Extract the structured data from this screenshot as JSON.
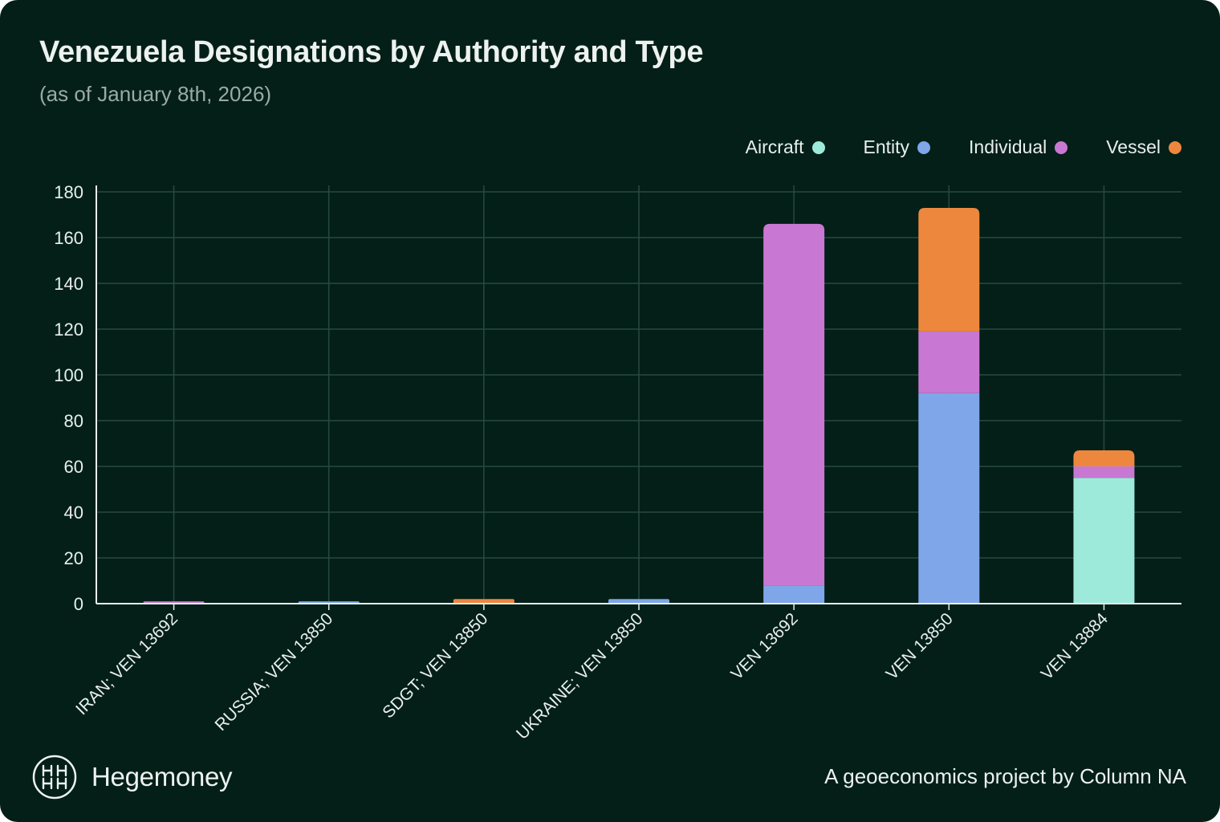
{
  "title": "Venezuela Designations by Authority and Type",
  "subtitle": "(as of January 8th, 2026)",
  "legend": [
    {
      "label": "Aircraft",
      "color": "#9eeada"
    },
    {
      "label": "Entity",
      "color": "#7fa6e8"
    },
    {
      "label": "Individual",
      "color": "#c878d2"
    },
    {
      "label": "Vessel",
      "color": "#ee873e"
    }
  ],
  "chart_data": {
    "type": "bar",
    "stacked": true,
    "title": "Venezuela Designations by Authority and Type",
    "categories": [
      "IRAN; VEN 13692",
      "RUSSIA; VEN 13850",
      "SDGT; VEN 13850",
      "UKRAINE; VEN 13850",
      "VEN 13692",
      "VEN 13850",
      "VEN 13884"
    ],
    "series": [
      {
        "name": "Aircraft",
        "color": "#9eeada",
        "values": [
          0,
          0,
          0,
          0,
          0,
          0,
          55
        ]
      },
      {
        "name": "Entity",
        "color": "#7fa6e8",
        "values": [
          0,
          1,
          0,
          2,
          8,
          92,
          0
        ]
      },
      {
        "name": "Individual",
        "color": "#c878d2",
        "values": [
          1,
          0,
          0,
          0,
          158,
          27,
          5
        ]
      },
      {
        "name": "Vessel",
        "color": "#ee873e",
        "values": [
          0,
          0,
          2,
          0,
          0,
          54,
          7
        ]
      }
    ],
    "ylim": [
      0,
      180
    ],
    "yticks": [
      0,
      20,
      40,
      60,
      80,
      100,
      120,
      140,
      160,
      180
    ],
    "xlabel": "",
    "ylabel": "",
    "grid": true,
    "legend_position": "top-right"
  },
  "footer": {
    "brand": "Hegemoney",
    "credit": "A geoeconomics project by Column NA"
  }
}
